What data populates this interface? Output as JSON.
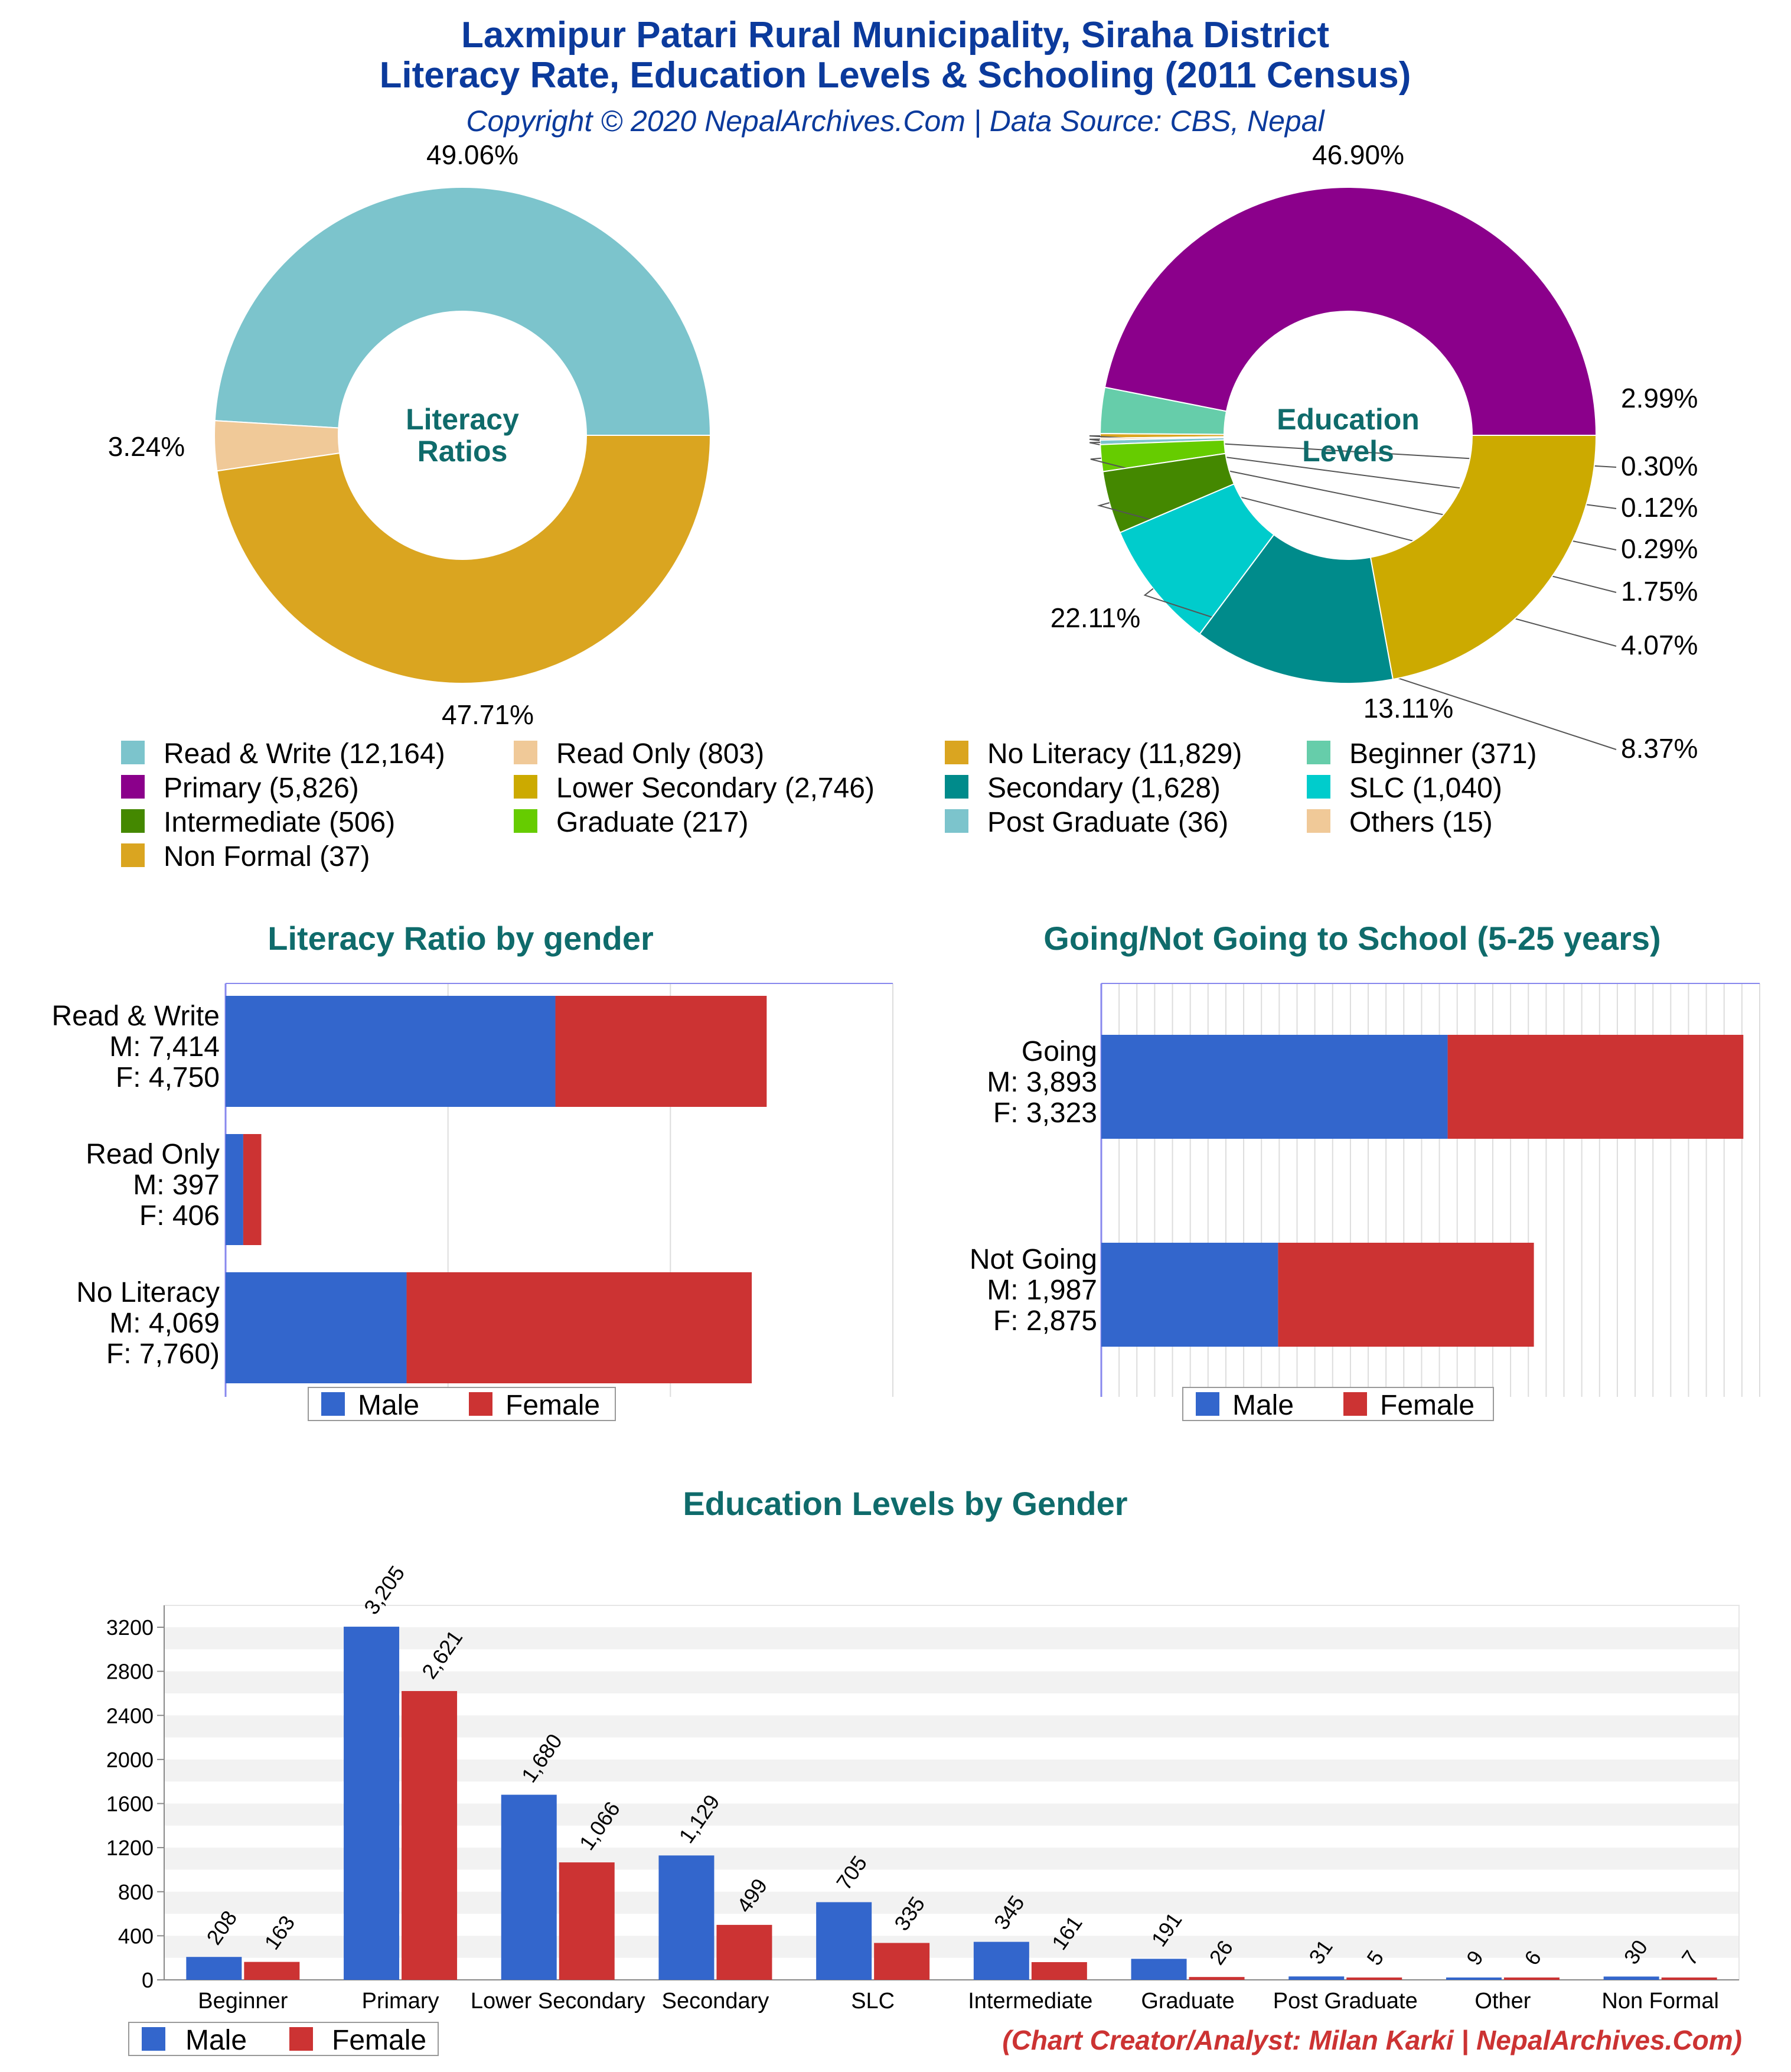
{
  "header": {
    "title_line1": "Laxmipur Patari Rural Municipality, Siraha District",
    "title_line2": "Literacy Rate, Education Levels & Schooling (2011 Census)",
    "subtitle": "Copyright © 2020 NepalArchives.Com | Data Source: CBS, Nepal"
  },
  "colors": {
    "male": "#3366cc",
    "female": "#cc3333",
    "teal_text": "#0f6b6b",
    "blue_text": "#0b3a9c"
  },
  "chart_data": [
    {
      "id": "literacy_donut",
      "type": "pie",
      "center_label": [
        "Literacy",
        "Ratios"
      ],
      "slices": [
        {
          "label": "Read & Write",
          "value": 12164,
          "pct": "49.06%",
          "color": "#7cc4cc"
        },
        {
          "label": "Read Only",
          "value": 803,
          "pct": "3.24%",
          "color": "#f0c998"
        },
        {
          "label": "No Literacy",
          "value": 11829,
          "pct": "47.71%",
          "color": "#daa520"
        }
      ]
    },
    {
      "id": "education_donut",
      "type": "pie",
      "center_label": [
        "Education",
        "Levels"
      ],
      "slices": [
        {
          "label": "Primary",
          "value": 5826,
          "pct": "46.90%",
          "color": "#8b008b"
        },
        {
          "label": "Beginner",
          "value": 371,
          "pct": "2.99%",
          "color": "#66cdaa"
        },
        {
          "label": "Non Formal",
          "value": 37,
          "pct": "0.30%",
          "color": "#daa520"
        },
        {
          "label": "Others",
          "value": 15,
          "pct": "0.12%",
          "color": "#f0c998"
        },
        {
          "label": "Post Graduate",
          "value": 36,
          "pct": "0.29%",
          "color": "#7cc4cc"
        },
        {
          "label": "Graduate",
          "value": 217,
          "pct": "1.75%",
          "color": "#66cc00"
        },
        {
          "label": "Intermediate",
          "value": 506,
          "pct": "4.07%",
          "color": "#448800"
        },
        {
          "label": "SLC",
          "value": 1040,
          "pct": "8.37%",
          "color": "#00cccc"
        },
        {
          "label": "Secondary",
          "value": 1628,
          "pct": "13.11%",
          "color": "#008b8b"
        },
        {
          "label": "Lower Secondary",
          "value": 2746,
          "pct": "22.11%",
          "color": "#ccaa00"
        }
      ]
    },
    {
      "id": "literacy_by_gender",
      "type": "bar",
      "orientation": "horizontal",
      "stacked": true,
      "title": "Literacy Ratio by gender",
      "categories": [
        "Read & Write",
        "Read Only",
        "No Literacy"
      ],
      "category_labels": [
        [
          "Read & Write",
          "M: 7,414",
          "F: 4,750"
        ],
        [
          "Read Only",
          "M: 397",
          "F: 406"
        ],
        [
          "No Literacy",
          "M: 4,069",
          "F: 7,760)"
        ]
      ],
      "series": [
        {
          "name": "Male",
          "values": [
            7414,
            397,
            4069
          ]
        },
        {
          "name": "Female",
          "values": [
            4750,
            406,
            7760
          ]
        }
      ],
      "xlim": [
        0,
        15000
      ],
      "legend": "bottom"
    },
    {
      "id": "school_by_gender",
      "type": "bar",
      "orientation": "horizontal",
      "stacked": true,
      "title": "Going/Not Going to School (5-25 years)",
      "categories": [
        "Going",
        "Not Going"
      ],
      "category_labels": [
        [
          "Going",
          "M: 3,893",
          "F: 3,323"
        ],
        [
          "Not Going",
          "M: 1,987",
          "F: 2,875"
        ]
      ],
      "series": [
        {
          "name": "Male",
          "values": [
            3893,
            1987
          ]
        },
        {
          "name": "Female",
          "values": [
            3323,
            2875
          ]
        }
      ],
      "xlim": [
        0,
        7400
      ],
      "legend": "bottom"
    },
    {
      "id": "education_by_gender",
      "type": "bar",
      "title": "Education Levels by Gender",
      "categories": [
        "Beginner",
        "Primary",
        "Lower Secondary",
        "Secondary",
        "SLC",
        "Intermediate",
        "Graduate",
        "Post Graduate",
        "Other",
        "Non Formal"
      ],
      "series": [
        {
          "name": "Male",
          "values": [
            208,
            3205,
            1680,
            1129,
            705,
            345,
            191,
            31,
            9,
            30
          ],
          "labels": [
            "208",
            "3,205",
            "1,680",
            "1,129",
            "705",
            "345",
            "191",
            "31",
            "9",
            "30"
          ]
        },
        {
          "name": "Female",
          "values": [
            163,
            2621,
            1066,
            499,
            335,
            161,
            26,
            5,
            6,
            7
          ],
          "labels": [
            "163",
            "2,621",
            "1,066",
            "499",
            "335",
            "161",
            "26",
            "5",
            "6",
            "7"
          ]
        }
      ],
      "yticks": [
        "0",
        "400",
        "800",
        "1200",
        "1600",
        "2000",
        "2400",
        "2800",
        "3200"
      ],
      "ylim": [
        0,
        3200
      ],
      "legend": "bottom-left"
    }
  ],
  "legend_items": [
    {
      "text": "Read & Write (12,164)",
      "color": "#7cc4cc"
    },
    {
      "text": "Read Only (803)",
      "color": "#f0c998"
    },
    {
      "text": "No Literacy (11,829)",
      "color": "#daa520"
    },
    {
      "text": "Beginner (371)",
      "color": "#66cdaa"
    },
    {
      "text": "Primary (5,826)",
      "color": "#8b008b"
    },
    {
      "text": "Lower Secondary (2,746)",
      "color": "#ccaa00"
    },
    {
      "text": "Secondary (1,628)",
      "color": "#008b8b"
    },
    {
      "text": "SLC (1,040)",
      "color": "#00cccc"
    },
    {
      "text": "Intermediate (506)",
      "color": "#448800"
    },
    {
      "text": "Graduate (217)",
      "color": "#66cc00"
    },
    {
      "text": "Post Graduate (36)",
      "color": "#7cc4cc"
    },
    {
      "text": "Others (15)",
      "color": "#f0c998"
    },
    {
      "text": "Non Formal (37)",
      "color": "#daa520"
    }
  ],
  "footer": {
    "credit": "(Chart Creator/Analyst: Milan Karki | NepalArchives.Com)"
  }
}
